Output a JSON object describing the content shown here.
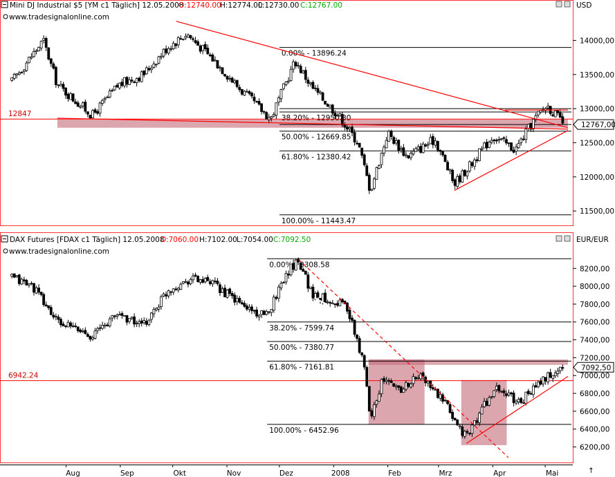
{
  "chart_data": [
    {
      "type": "candlestick",
      "title": "Mini DJ Industrial $5 [YM c1  Täglich] 12.05.2008",
      "ohlc_header": {
        "open": "O:12740.00",
        "high": "H:12774.00",
        "low": "L:12730.00",
        "close": "C:12767.00"
      },
      "watermark": "www.tradesignalonline.com",
      "currency": "USD",
      "ylim": [
        11350,
        14450
      ],
      "yticks": [
        {
          "v": 14000,
          "label": "14000,00"
        },
        {
          "v": 13500,
          "label": "13500,00"
        },
        {
          "v": 13000,
          "label": "13000,00"
        },
        {
          "v": 12500,
          "label": "12500,00"
        },
        {
          "v": 12000,
          "label": "12000,00"
        },
        {
          "v": 11500,
          "label": "11500,00"
        }
      ],
      "last_price": {
        "value": 12767,
        "label": "12767,00"
      },
      "support": {
        "value": 12847,
        "label": "12847"
      },
      "fib_levels": [
        {
          "value": 13896.24,
          "label": "0.00% - 13896.24"
        },
        {
          "value": 12950.3,
          "label": "38.20% - 12950.30"
        },
        {
          "value": 12669.85,
          "label": "50.00% - 12669.85"
        },
        {
          "value": 12380.42,
          "label": "61.80% - 12380.42"
        },
        {
          "value": 11443.47,
          "label": "100.00% - 11443.47"
        }
      ],
      "fib_extra_lines": [
        13000,
        12767
      ],
      "trendlines": [
        {
          "from": [
            "2007-10-03",
            14280
          ],
          "to": [
            "2008-05-14",
            12720
          ]
        },
        {
          "from": [
            "2007-07-27",
            12860
          ],
          "to": [
            "2008-05-14",
            12700
          ]
        },
        {
          "from": [
            "2008-03-10",
            11800
          ],
          "to": [
            "2008-05-14",
            12680
          ]
        },
        {
          "from": [
            "2008-04-08",
            12980
          ],
          "to": [
            "2008-05-14",
            12980
          ]
        }
      ],
      "shaded_zones": [
        {
          "x_from": "2007-07-27",
          "x_to": "2008-05-14",
          "y_from": 12720,
          "y_to": 12840
        }
      ],
      "anchors": [
        {
          "date": "2007-07-01",
          "value": 13400
        },
        {
          "date": "2007-07-19",
          "value": 14000
        },
        {
          "date": "2007-07-27",
          "value": 13350
        },
        {
          "date": "2007-08-16",
          "value": 12900
        },
        {
          "date": "2007-08-31",
          "value": 13350
        },
        {
          "date": "2007-09-14",
          "value": 13500
        },
        {
          "date": "2007-09-28",
          "value": 13900
        },
        {
          "date": "2007-10-09",
          "value": 14100
        },
        {
          "date": "2007-10-25",
          "value": 13700
        },
        {
          "date": "2007-11-08",
          "value": 13300
        },
        {
          "date": "2007-11-26",
          "value": 12850
        },
        {
          "date": "2007-12-10",
          "value": 13700
        },
        {
          "date": "2007-12-20",
          "value": 13300
        },
        {
          "date": "2008-01-04",
          "value": 12900
        },
        {
          "date": "2008-01-15",
          "value": 12500
        },
        {
          "date": "2008-01-22",
          "value": 11800
        },
        {
          "date": "2008-02-01",
          "value": 12650
        },
        {
          "date": "2008-02-12",
          "value": 12300
        },
        {
          "date": "2008-02-28",
          "value": 12550
        },
        {
          "date": "2008-03-10",
          "value": 11900
        },
        {
          "date": "2008-03-20",
          "value": 12200
        },
        {
          "date": "2008-04-01",
          "value": 12600
        },
        {
          "date": "2008-04-14",
          "value": 12400
        },
        {
          "date": "2008-04-25",
          "value": 12850
        },
        {
          "date": "2008-05-02",
          "value": 13050
        },
        {
          "date": "2008-05-12",
          "value": 12767
        }
      ]
    },
    {
      "type": "candlestick",
      "title": "DAX Futures [FDAX c1  Täglich] 12.05.2008",
      "ohlc_header": {
        "open": "O:7060.00",
        "high": "H:7102.00",
        "low": "L:7054.00",
        "close": "C:7092.50"
      },
      "watermark": "www.tradesignalonline.com",
      "currency": "EUR/EUR",
      "ylim": [
        6080,
        8450
      ],
      "yticks": [
        {
          "v": 8200,
          "label": "8200,00"
        },
        {
          "v": 8000,
          "label": "8000,00"
        },
        {
          "v": 7800,
          "label": "7800,00"
        },
        {
          "v": 7600,
          "label": "7600,00"
        },
        {
          "v": 7400,
          "label": "7400,00"
        },
        {
          "v": 7200,
          "label": "7200,00"
        },
        {
          "v": 7000,
          "label": "7000,00"
        },
        {
          "v": 6800,
          "label": "6800,00"
        },
        {
          "v": 6600,
          "label": "6600,00"
        },
        {
          "v": 6400,
          "label": "6400,00"
        },
        {
          "v": 6200,
          "label": "6200,00"
        }
      ],
      "last_price": {
        "value": 7092.5,
        "label": "7092,50"
      },
      "support": {
        "value": 6942.24,
        "label": "6942.24"
      },
      "fib_levels": [
        {
          "value": 8308.58,
          "label": "0.00% - 8308.58"
        },
        {
          "value": 7599.74,
          "label": "38.20% - 7599.74"
        },
        {
          "value": 7380.77,
          "label": "50.00% - 7380.77"
        },
        {
          "value": 7161.81,
          "label": "61.80% - 7161.81"
        },
        {
          "value": 6452.96,
          "label": "100.00% - 6452.96"
        }
      ],
      "trendlines": [
        {
          "from": [
            "2008-03-17",
            6240
          ],
          "to": [
            "2008-05-14",
            6990
          ],
          "style": "solid"
        },
        {
          "from": [
            "2007-12-12",
            8300
          ],
          "to": [
            "2008-04-10",
            6080
          ],
          "style": "dashed"
        },
        {
          "from": [
            "2007-12-21",
            7870
          ],
          "to": [
            "2007-12-28",
            7800
          ],
          "style": "solid-white"
        }
      ],
      "shaded_zones": [
        {
          "x_from": "2008-01-21",
          "x_to": "2008-05-14",
          "y_from": 7120,
          "y_to": 7180
        },
        {
          "x_from": "2008-01-21",
          "x_to": "2008-02-22",
          "y_from": 6450,
          "y_to": 7180
        },
        {
          "x_from": "2008-03-14",
          "x_to": "2008-04-09",
          "y_from": 6220,
          "y_to": 6950
        }
      ],
      "anchors": [
        {
          "date": "2007-07-01",
          "value": 8100
        },
        {
          "date": "2007-07-13",
          "value": 8000
        },
        {
          "date": "2007-07-27",
          "value": 7600
        },
        {
          "date": "2007-08-16",
          "value": 7450
        },
        {
          "date": "2007-08-31",
          "value": 7700
        },
        {
          "date": "2007-09-14",
          "value": 7550
        },
        {
          "date": "2007-09-28",
          "value": 7950
        },
        {
          "date": "2007-10-12",
          "value": 8100
        },
        {
          "date": "2007-10-26",
          "value": 8000
        },
        {
          "date": "2007-11-09",
          "value": 7800
        },
        {
          "date": "2007-11-23",
          "value": 7650
        },
        {
          "date": "2007-12-05",
          "value": 8150
        },
        {
          "date": "2007-12-12",
          "value": 8300
        },
        {
          "date": "2007-12-20",
          "value": 7900
        },
        {
          "date": "2008-01-08",
          "value": 7800
        },
        {
          "date": "2008-01-18",
          "value": 7150
        },
        {
          "date": "2008-01-22",
          "value": 6550
        },
        {
          "date": "2008-01-29",
          "value": 6950
        },
        {
          "date": "2008-02-08",
          "value": 6850
        },
        {
          "date": "2008-02-20",
          "value": 7000
        },
        {
          "date": "2008-03-04",
          "value": 6700
        },
        {
          "date": "2008-03-17",
          "value": 6300
        },
        {
          "date": "2008-03-28",
          "value": 6700
        },
        {
          "date": "2008-04-04",
          "value": 6850
        },
        {
          "date": "2008-04-16",
          "value": 6700
        },
        {
          "date": "2008-04-30",
          "value": 6950
        },
        {
          "date": "2008-05-12",
          "value": 7092.5
        }
      ]
    }
  ],
  "x_axis": {
    "start": "2007-06-25",
    "end": "2008-05-16",
    "ticks": [
      {
        "date": "2007-08-01",
        "label": "Aug"
      },
      {
        "date": "2007-09-01",
        "label": "Sep"
      },
      {
        "date": "2007-10-01",
        "label": "Okt"
      },
      {
        "date": "2007-11-01",
        "label": "Nov"
      },
      {
        "date": "2007-12-01",
        "label": "Dez"
      },
      {
        "date": "2008-01-01",
        "label": "2008"
      },
      {
        "date": "2008-02-01",
        "label": "Feb"
      },
      {
        "date": "2008-03-01",
        "label": "Mrz"
      },
      {
        "date": "2008-04-01",
        "label": "Apr"
      },
      {
        "date": "2008-05-01",
        "label": "Mai"
      }
    ]
  },
  "colors": {
    "up": "#ffffff",
    "down": "#000000",
    "line": "#ff0000",
    "zone": "#c46a7a",
    "frame": "#ff0000",
    "open": "#ff0000",
    "close": "#00aa00",
    "label": "#cc0000"
  },
  "arrow_glyph": "↑"
}
